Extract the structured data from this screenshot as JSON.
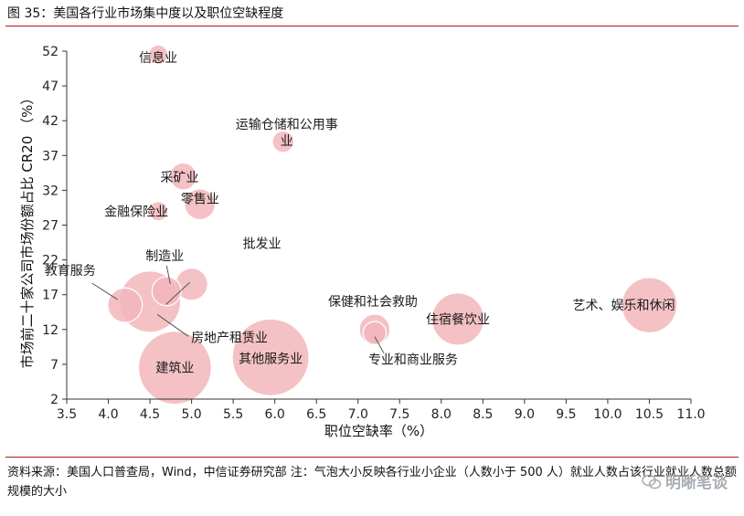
{
  "figure_title": "图 35：美国各行业市场集中度以及职位空缺程度",
  "source_note": "资料来源：美国人口普查局，Wind，中信证券研究部  注：气泡大小反映各行业小企业（人数小于 500 人）就业人数占该行业就业人数总额规模的大小",
  "watermark": "明晰笔谈",
  "colors": {
    "rule": "#b01a1a",
    "bubble_fill": "#f2b6bb",
    "bubble_edge": "#ffffff",
    "axis": "#333333",
    "leader": "#555555"
  },
  "chart_data": {
    "type": "bubble",
    "title": "",
    "xlabel": "职位空缺率（%）",
    "ylabel": "市场前二十家公司市场份额占比 CR20 （%）",
    "xlim": [
      3.5,
      11.0
    ],
    "ylim": [
      2,
      52
    ],
    "xticks": [
      "3.5",
      "4.0",
      "4.5",
      "5.0",
      "5.5",
      "6.0",
      "6.5",
      "7.0",
      "7.5",
      "8.0",
      "8.5",
      "9.0",
      "9.5",
      "10.0",
      "10.5",
      "11.0"
    ],
    "yticks": [
      "2",
      "7",
      "12",
      "17",
      "22",
      "27",
      "32",
      "37",
      "42",
      "47",
      "52"
    ],
    "series": [
      {
        "name": "信息业",
        "x": 4.6,
        "y": 51.5,
        "size": 0.25,
        "label": "信息业"
      },
      {
        "name": "运输仓储和公用事业",
        "x": 6.1,
        "y": 39.0,
        "size": 0.28,
        "label": "运输仓储和公用事\n业"
      },
      {
        "name": "采矿业",
        "x": 4.9,
        "y": 34.0,
        "size": 0.35,
        "label": "采矿业"
      },
      {
        "name": "零售业",
        "x": 5.1,
        "y": 30.0,
        "size": 0.4,
        "label": "零售业"
      },
      {
        "name": "金融保险业",
        "x": 4.6,
        "y": 29.0,
        "size": 0.25,
        "label": "金融保险业"
      },
      {
        "name": "批发业",
        "x": 5.0,
        "y": 18.5,
        "size": 0.42,
        "label": "批发业"
      },
      {
        "name": "制造业",
        "x": 4.7,
        "y": 17.5,
        "size": 0.38,
        "label": "制造业"
      },
      {
        "name": "教育服务",
        "x": 4.2,
        "y": 15.5,
        "size": 0.45,
        "label": "教育服务"
      },
      {
        "name": "房地产租赁业",
        "x": 4.5,
        "y": 16.0,
        "size": 0.8,
        "label": "房地产租赁业"
      },
      {
        "name": "建筑业",
        "x": 4.8,
        "y": 6.5,
        "size": 0.95,
        "label": "建筑业"
      },
      {
        "name": "其他服务业",
        "x": 5.95,
        "y": 8.0,
        "size": 1.0,
        "label": "其他服务业"
      },
      {
        "name": "保健和社会救助",
        "x": 7.2,
        "y": 12.0,
        "size": 0.4,
        "label": "保健和社会救助"
      },
      {
        "name": "专业和商业服务",
        "x": 7.2,
        "y": 11.5,
        "size": 0.3,
        "label": "专业和商业服务"
      },
      {
        "name": "住宿餐饮业",
        "x": 8.2,
        "y": 13.5,
        "size": 0.68,
        "label": "住宿餐饮业"
      },
      {
        "name": "艺术、娱乐和休闲",
        "x": 10.5,
        "y": 15.5,
        "size": 0.72,
        "label": "艺术、娱乐和休闲"
      }
    ]
  }
}
